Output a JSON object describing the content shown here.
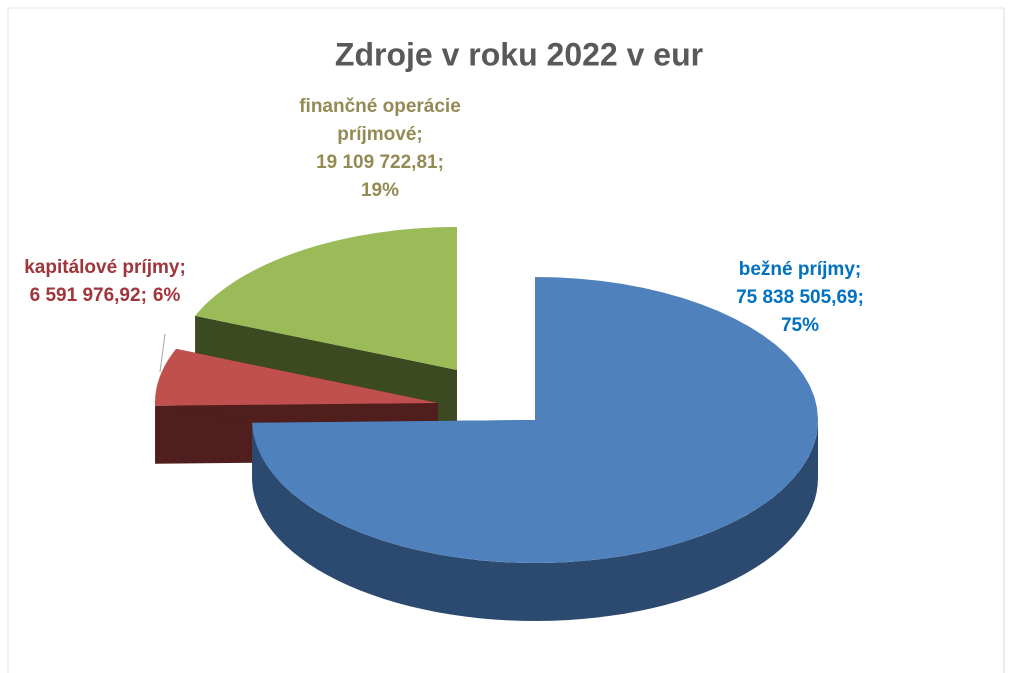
{
  "chart_data": {
    "type": "pie3d",
    "title": "Zdroje v roku 2022 v eur",
    "categories": [
      "bežné príjmy;",
      "kapitálové príjmy;",
      "finančné operácie príjmové;"
    ],
    "values": [
      75838505.69,
      6591976.92,
      19109722.81
    ],
    "value_labels": [
      "75 838 505,69;",
      "6 591 976,92;",
      "19 109 722,81;"
    ],
    "percents": [
      75,
      6,
      19
    ],
    "percent_labels": [
      "75%",
      "6%",
      "19%"
    ],
    "colors": [
      "#4f81bd",
      "#c0504d",
      "#9bbb59"
    ]
  }
}
